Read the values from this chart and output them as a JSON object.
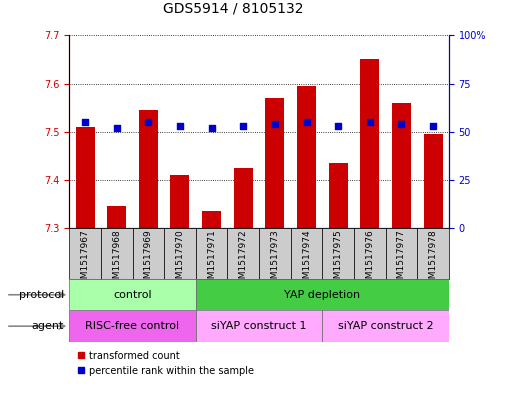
{
  "title": "GDS5914 / 8105132",
  "samples": [
    "GSM1517967",
    "GSM1517968",
    "GSM1517969",
    "GSM1517970",
    "GSM1517971",
    "GSM1517972",
    "GSM1517973",
    "GSM1517974",
    "GSM1517975",
    "GSM1517976",
    "GSM1517977",
    "GSM1517978"
  ],
  "transformed_count": [
    7.51,
    7.345,
    7.545,
    7.41,
    7.335,
    7.425,
    7.57,
    7.595,
    7.435,
    7.65,
    7.56,
    7.495
  ],
  "percentile_rank": [
    55,
    52,
    55,
    53,
    52,
    53,
    54,
    55,
    53,
    55,
    54,
    53
  ],
  "bar_baseline": 7.3,
  "ylim_left": [
    7.3,
    7.7
  ],
  "ylim_right": [
    0,
    100
  ],
  "yticks_left": [
    7.3,
    7.4,
    7.5,
    7.6,
    7.7
  ],
  "yticks_right": [
    0,
    25,
    50,
    75,
    100
  ],
  "ytick_labels_right": [
    "0",
    "25",
    "50",
    "75",
    "100%"
  ],
  "bar_color": "#cc0000",
  "dot_color": "#0000cc",
  "protocol_groups": [
    {
      "label": "control",
      "start": 0,
      "end": 4,
      "color": "#aaffaa"
    },
    {
      "label": "YAP depletion",
      "start": 4,
      "end": 12,
      "color": "#44cc44"
    }
  ],
  "agent_groups": [
    {
      "label": "RISC-free control",
      "start": 0,
      "end": 4,
      "color": "#ee66ee"
    },
    {
      "label": "siYAP construct 1",
      "start": 4,
      "end": 8,
      "color": "#ffaaff"
    },
    {
      "label": "siYAP construct 2",
      "start": 8,
      "end": 12,
      "color": "#ffaaff"
    }
  ],
  "legend_items": [
    {
      "label": "transformed count",
      "color": "#cc0000"
    },
    {
      "label": "percentile rank within the sample",
      "color": "#0000cc"
    }
  ],
  "left_label_color": "#cc0000",
  "right_label_color": "#0000cc",
  "font_size_title": 10,
  "font_size_ticks": 7,
  "font_size_labels": 8,
  "font_size_group": 8,
  "dot_size": 25,
  "bar_width": 0.6,
  "xlim": [
    -0.5,
    11.5
  ],
  "xtick_bg_color": "#cccccc"
}
